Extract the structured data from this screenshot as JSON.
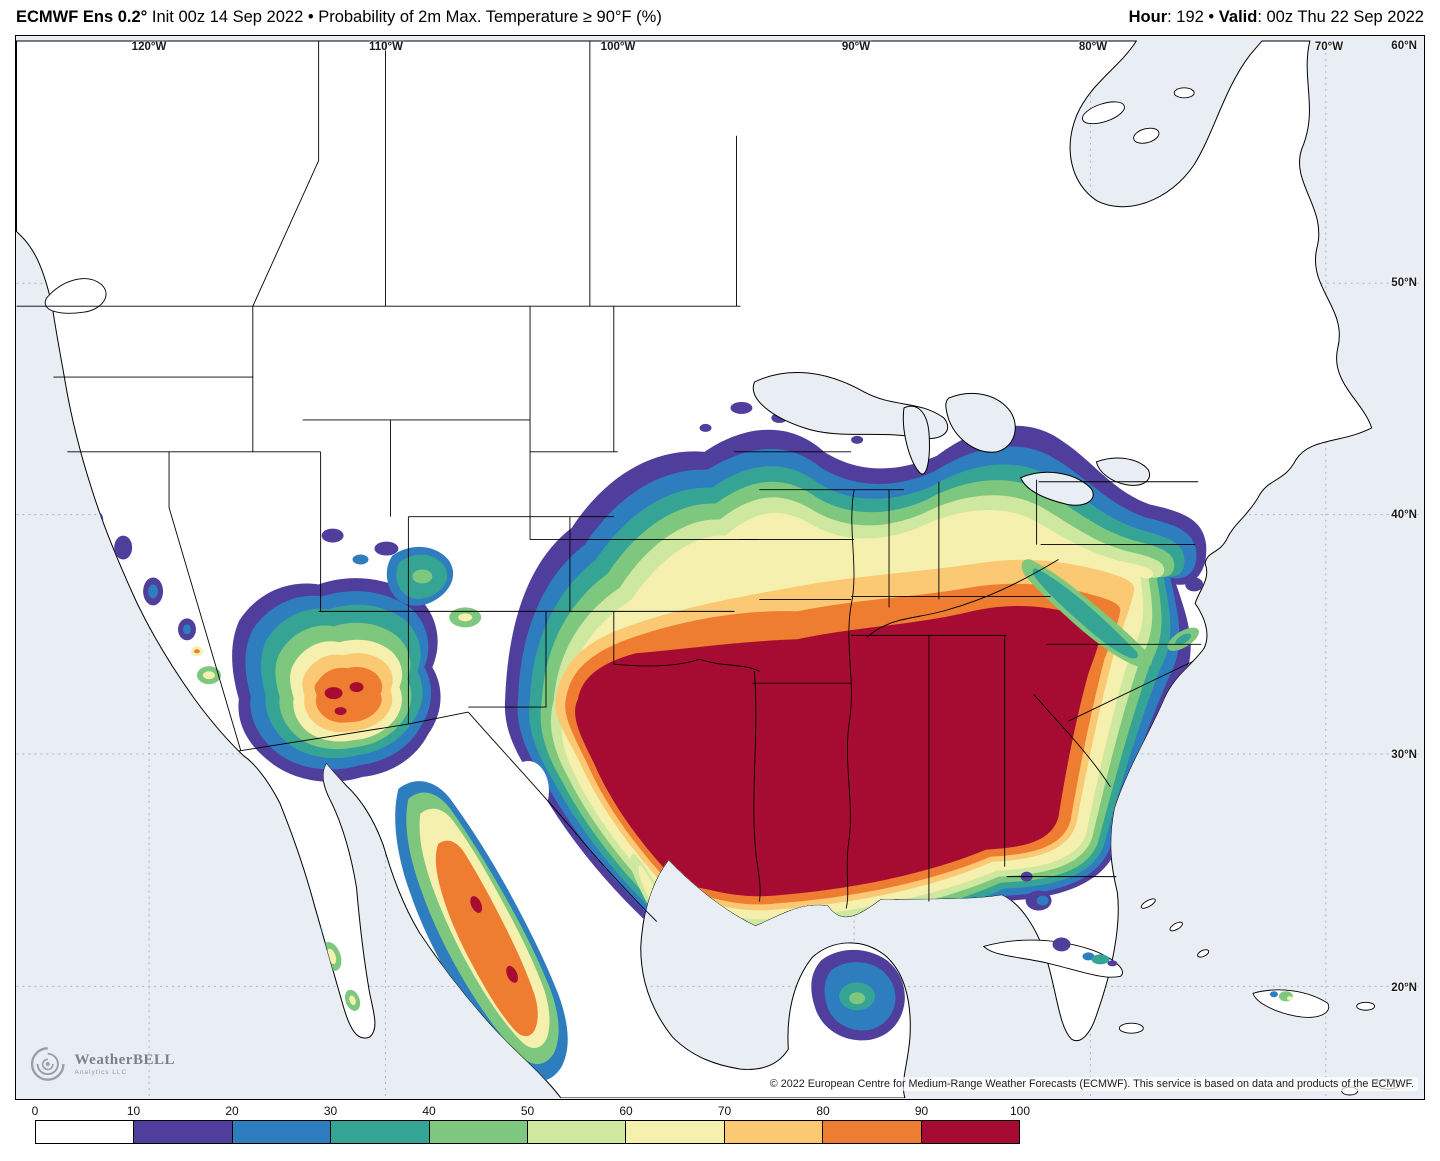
{
  "header": {
    "title_bold": "ECMWF Ens 0.2°",
    "title_rest": " Init 00z 14 Sep 2022 • Probability of 2m Max. Temperature ≥ 90°F (%)",
    "hour_label": "Hour",
    "hour_value": ": 192",
    "bullet": " • ",
    "valid_label": "Valid",
    "valid_value": ": 00z Thu 22 Sep 2022"
  },
  "map": {
    "lon_labels": [
      "120°W",
      "110°W",
      "100°W",
      "90°W",
      "80°W",
      "70°W"
    ],
    "lat_labels": [
      "60°N",
      "50°N",
      "40°N",
      "30°N",
      "20°N"
    ],
    "attribution": "© 2022 European Centre for Medium-Range Weather Forecasts (ECMWF). This service is based on data and products of the ECMWF."
  },
  "logo": {
    "name": "WeatherBELL",
    "sub": "Analytics LLC"
  },
  "colorbar": {
    "ticks": [
      "0",
      "10",
      "20",
      "30",
      "40",
      "50",
      "60",
      "70",
      "80",
      "90",
      "100"
    ],
    "colors": [
      "#ffffff",
      "#4f3e9c",
      "#2e7dbe",
      "#36a495",
      "#7ec77f",
      "#cfe8a0",
      "#f5f0ae",
      "#fbc873",
      "#ef7d31",
      "#a60c31"
    ]
  }
}
